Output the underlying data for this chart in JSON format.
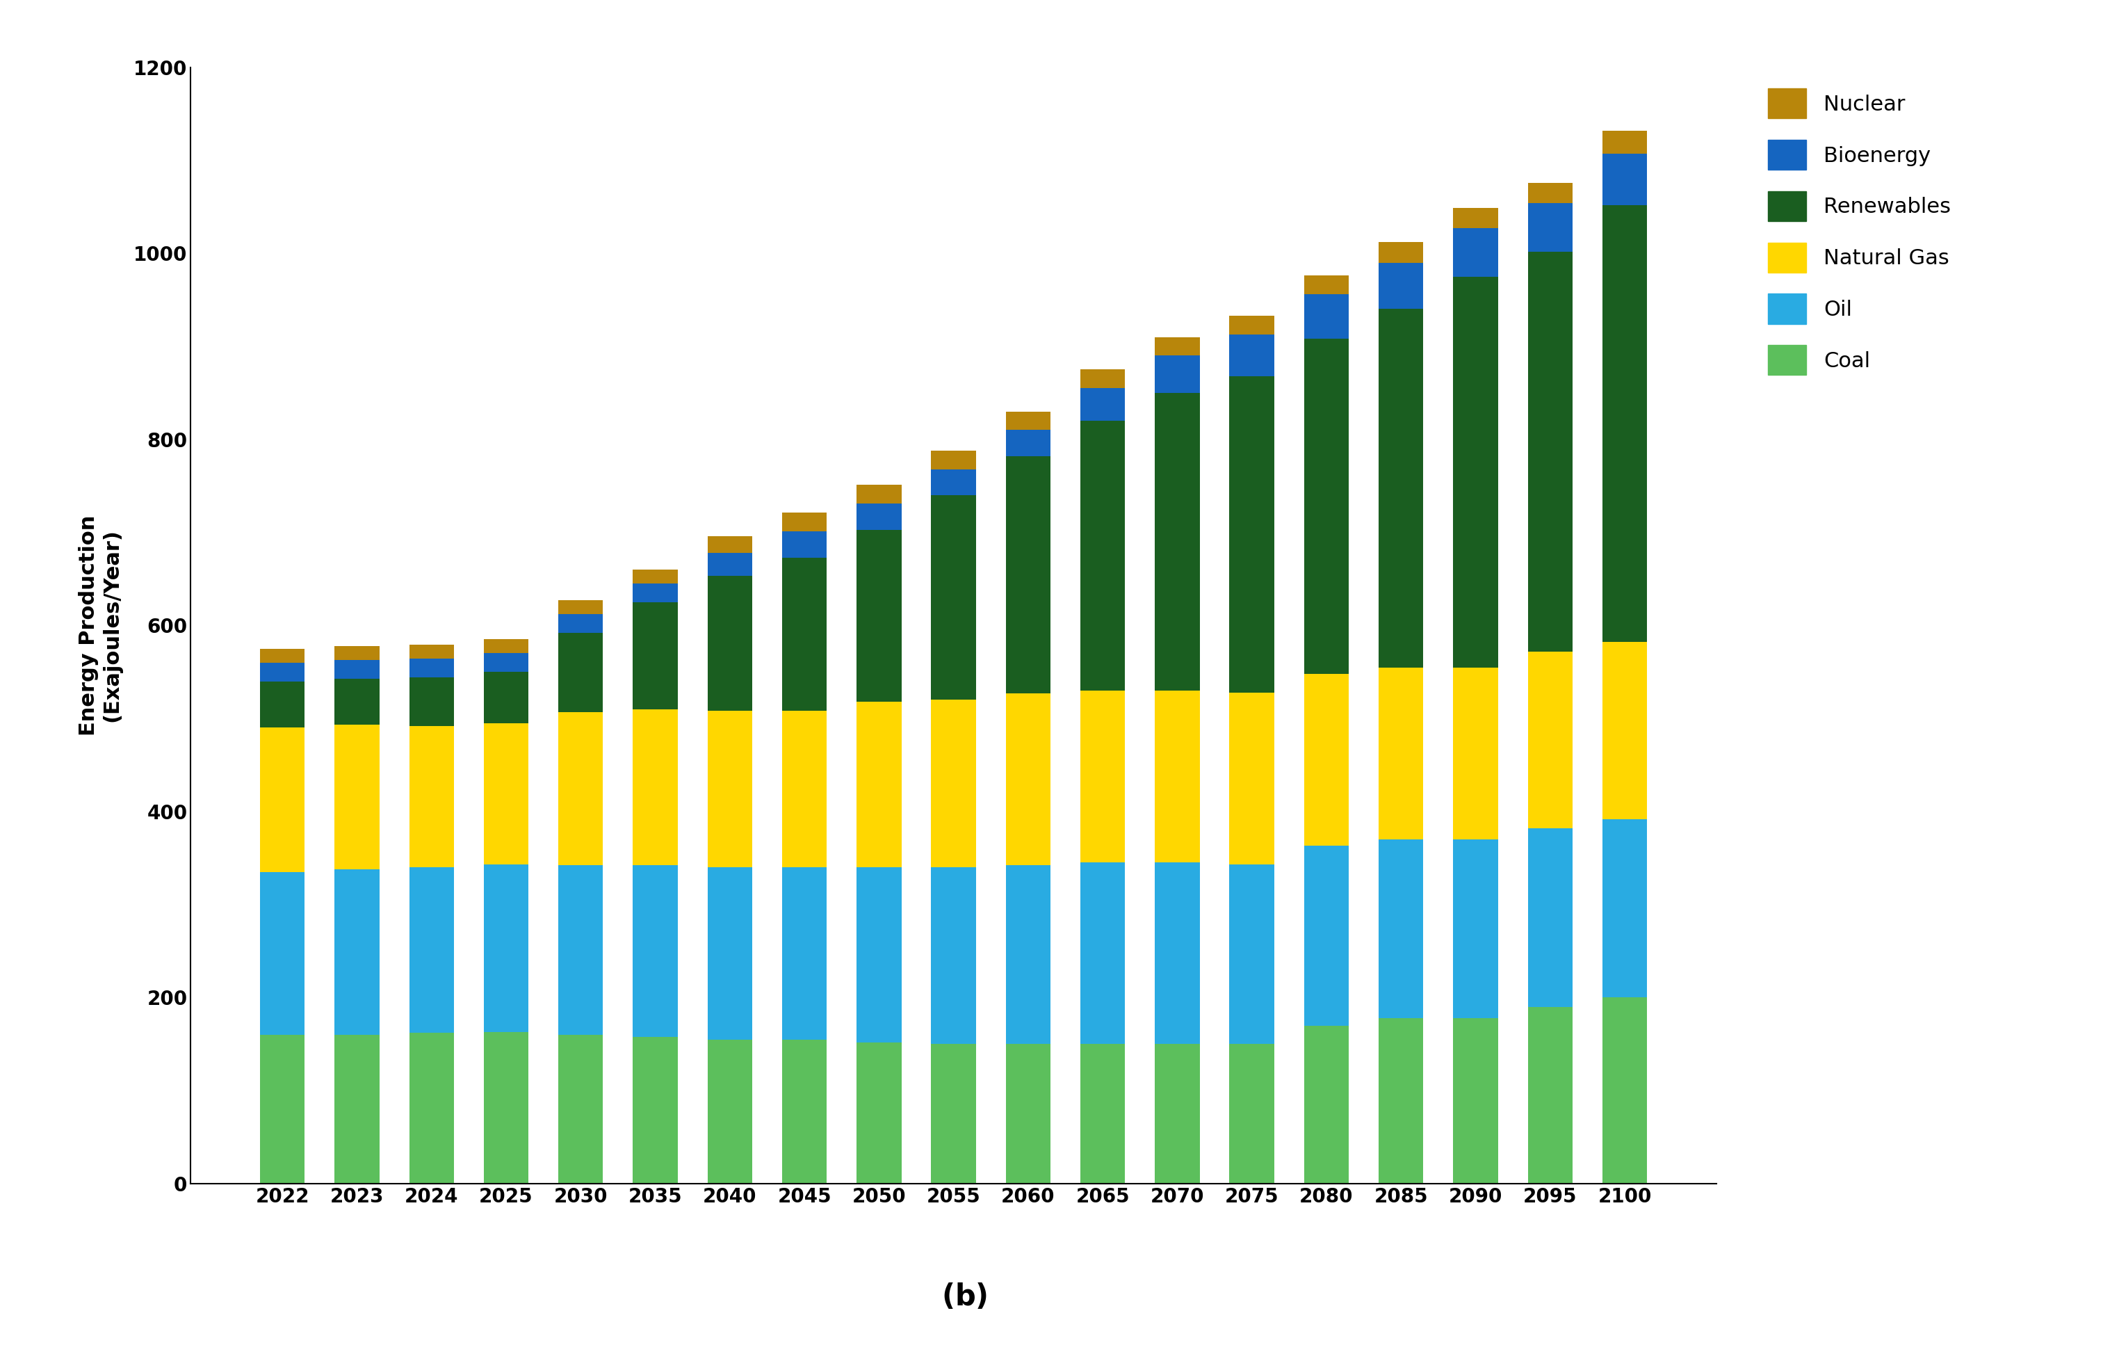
{
  "categories": [
    "2022",
    "2023",
    "2024",
    "2025",
    "2030",
    "2035",
    "2040",
    "2045",
    "2050",
    "2055",
    "2060",
    "2065",
    "2070",
    "2075",
    "2080",
    "2085",
    "2090",
    "2095",
    "2100"
  ],
  "coal": [
    160,
    160,
    162,
    163,
    160,
    158,
    155,
    155,
    152,
    150,
    150,
    150,
    150,
    150,
    170,
    178,
    178,
    190,
    200
  ],
  "oil": [
    175,
    178,
    178,
    180,
    182,
    184,
    185,
    185,
    188,
    190,
    192,
    195,
    195,
    193,
    193,
    192,
    192,
    192,
    192
  ],
  "natural_gas": [
    155,
    155,
    152,
    152,
    165,
    168,
    168,
    168,
    178,
    180,
    185,
    185,
    185,
    185,
    185,
    185,
    185,
    190,
    190
  ],
  "renewables": [
    50,
    50,
    52,
    55,
    85,
    115,
    145,
    165,
    185,
    220,
    255,
    290,
    320,
    340,
    360,
    385,
    420,
    430,
    470
  ],
  "bioenergy": [
    20,
    20,
    20,
    20,
    20,
    20,
    25,
    28,
    28,
    28,
    28,
    35,
    40,
    45,
    48,
    50,
    52,
    52,
    55
  ],
  "nuclear": [
    15,
    15,
    15,
    15,
    15,
    15,
    18,
    20,
    20,
    20,
    20,
    20,
    20,
    20,
    20,
    22,
    22,
    22,
    25
  ],
  "colors": {
    "coal": "#5CBF5C",
    "oil": "#29ABE2",
    "natural_gas": "#FFD700",
    "renewables": "#1A5E20",
    "bioenergy": "#1565C0",
    "nuclear": "#B8860B"
  },
  "ylabel": "Energy Production\n(Exajoules/Year)",
  "ylim": [
    0,
    1200
  ],
  "yticks": [
    0,
    200,
    400,
    600,
    800,
    1000,
    1200
  ],
  "background_color": "#FFFFFF",
  "figure_background": "#FFFFFF",
  "bar_width": 0.6
}
